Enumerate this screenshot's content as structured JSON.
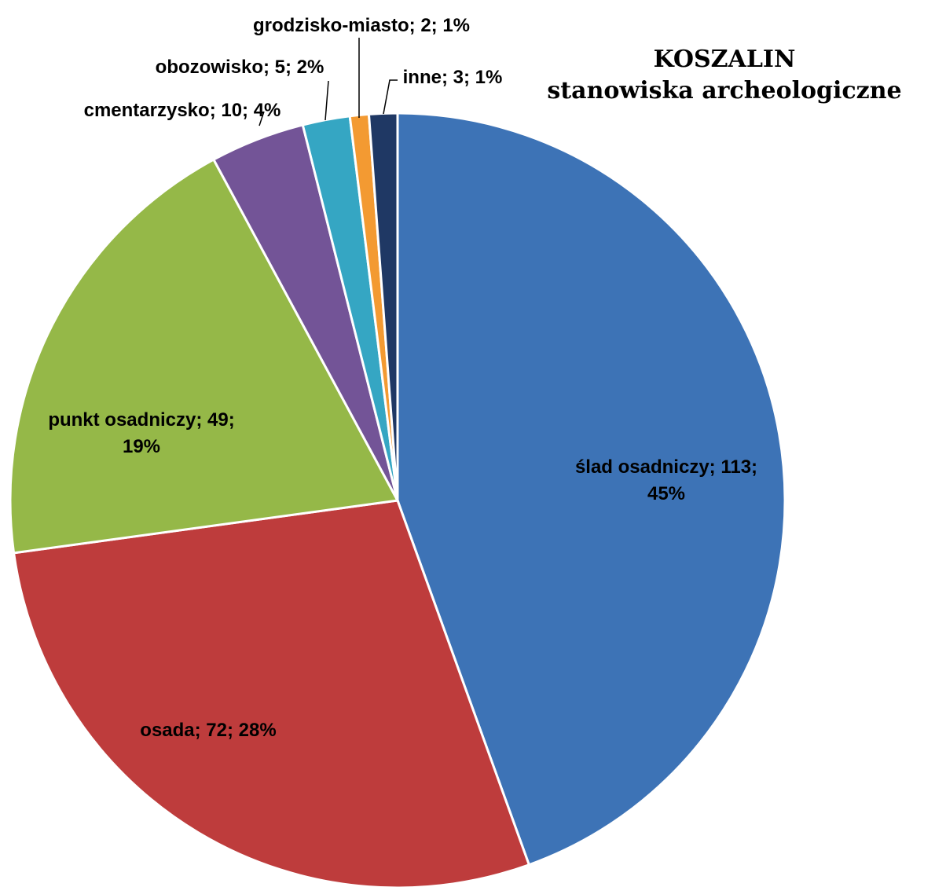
{
  "chart_data": {
    "type": "pie",
    "title": [
      "KOSZALIN",
      "stanowiska archeologiczne"
    ],
    "start_angle_deg": 0,
    "direction": "clockwise",
    "slices": [
      {
        "name": "ślad osadniczy",
        "value": 113,
        "percent": "45%",
        "color": "#3D73B6",
        "label": [
          "ślad osadniczy; 113;",
          "45%"
        ]
      },
      {
        "name": "osada",
        "value": 72,
        "percent": "28%",
        "color": "#BE3C3C",
        "label": [
          "osada; 72; 28%"
        ]
      },
      {
        "name": "punkt osadniczy",
        "value": 49,
        "percent": "19%",
        "color": "#95B848",
        "label": [
          "punkt osadniczy; 49;",
          "19%"
        ]
      },
      {
        "name": "cmentarzysko",
        "value": 10,
        "percent": "4%",
        "color": "#735497",
        "label": [
          "cmentarzysko; 10; 4%"
        ]
      },
      {
        "name": "obozowisko",
        "value": 5,
        "percent": "2%",
        "color": "#35A6C3",
        "label": [
          "obozowisko; 5; 2%"
        ]
      },
      {
        "name": "grodzisko-miasto",
        "value": 2,
        "percent": "1%",
        "color": "#F39A32",
        "label": [
          "grodzisko-miasto; 2; 1%"
        ]
      },
      {
        "name": "inne",
        "value": 3,
        "percent": "1%",
        "color": "#1F3864",
        "label": [
          "inne; 3; 1%"
        ]
      }
    ]
  }
}
